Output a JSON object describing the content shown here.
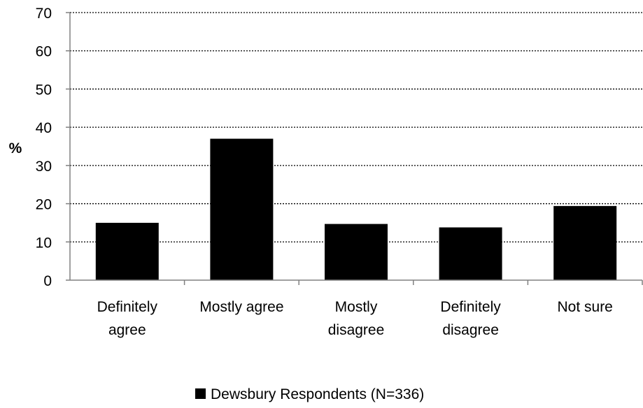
{
  "chart_data": {
    "type": "bar",
    "categories": [
      [
        "Definitely",
        "agree"
      ],
      [
        "Mostly agree"
      ],
      [
        "Mostly",
        "disagree"
      ],
      [
        "Definitely",
        "disagree"
      ],
      [
        "Not sure"
      ]
    ],
    "series": [
      {
        "name": "Dewsbury Respondents (N=336)",
        "values": [
          15,
          37,
          14.7,
          13.8,
          19.4
        ],
        "color": "#000000"
      }
    ],
    "ylabel": "%",
    "ylim": [
      0,
      70
    ],
    "yticks": [
      0,
      10,
      20,
      30,
      40,
      50,
      60,
      70
    ],
    "grid": "horizontal-dotted",
    "legend_position": "bottom-center"
  }
}
